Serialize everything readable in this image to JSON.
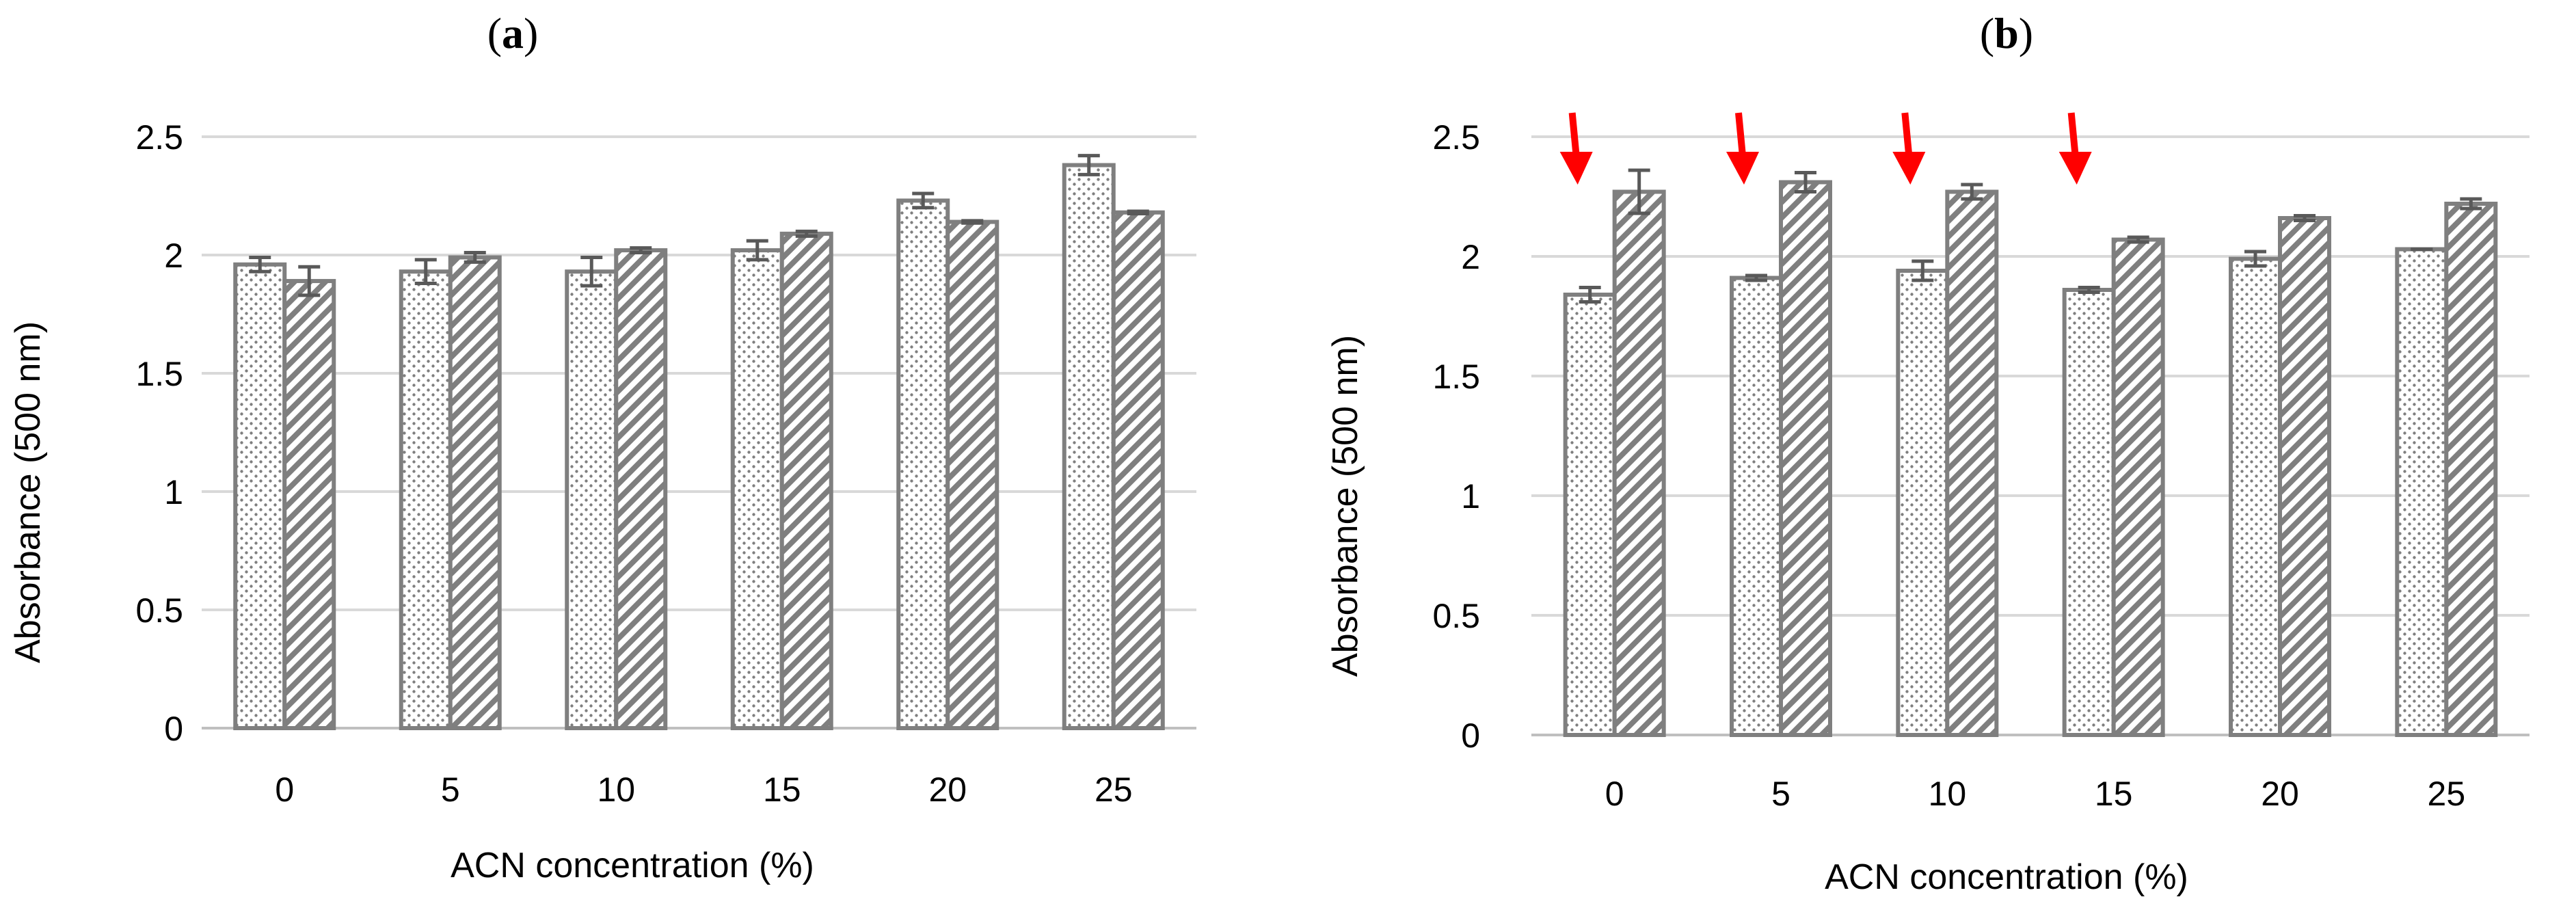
{
  "colors": {
    "bar_stroke": "#7f7f7f",
    "error_bar": "#595959",
    "grid": "#d9d9d9",
    "arrow": "#ff0000"
  },
  "chart_data": [
    {
      "type": "bar",
      "panel": {
        "open": "(",
        "letter": "a",
        "close": ")"
      },
      "xlabel": "ACN concentration (%)",
      "ylabel": "Absorbance (500 nm)",
      "ylim": [
        0,
        2.5
      ],
      "yticks": [
        "0",
        "0.5",
        "1",
        "1.5",
        "2",
        "2.5"
      ],
      "categories": [
        "0",
        "5",
        "10",
        "15",
        "20",
        "25"
      ],
      "series": [
        {
          "name": "series 1 (dotted)",
          "pattern": "dots",
          "values": [
            1.96,
            1.93,
            1.93,
            2.02,
            2.23,
            2.38
          ],
          "errors": [
            0.03,
            0.05,
            0.06,
            0.04,
            0.03,
            0.04
          ]
        },
        {
          "name": "series 2 (hatched)",
          "pattern": "hatch",
          "values": [
            1.89,
            1.99,
            2.02,
            2.09,
            2.14,
            2.18
          ],
          "errors": [
            0.06,
            0.02,
            0.01,
            0.01,
            0.005,
            0.005
          ]
        }
      ],
      "annotations": []
    },
    {
      "type": "bar",
      "panel": {
        "open": "(",
        "letter": "b",
        "close": ")"
      },
      "xlabel": "ACN concentration (%)",
      "ylabel": "Absorbance (500 nm)",
      "ylim": [
        0,
        2.5
      ],
      "yticks": [
        "0",
        "0.5",
        "1",
        "1.5",
        "2",
        "2.5"
      ],
      "categories": [
        "0",
        "5",
        "10",
        "15",
        "20",
        "25"
      ],
      "series": [
        {
          "name": "series 1 (dotted)",
          "pattern": "dots",
          "values": [
            1.84,
            1.91,
            1.94,
            1.86,
            1.99,
            2.03
          ],
          "errors": [
            0.03,
            0.01,
            0.04,
            0.01,
            0.03,
            0.0
          ]
        },
        {
          "name": "series 2 (hatched)",
          "pattern": "hatch",
          "values": [
            2.27,
            2.31,
            2.27,
            2.07,
            2.16,
            2.22
          ],
          "errors": [
            0.09,
            0.04,
            0.03,
            0.01,
            0.01,
            0.02
          ]
        }
      ],
      "annotations": [
        {
          "type": "red-arrow",
          "category": "0"
        },
        {
          "type": "red-arrow",
          "category": "5"
        },
        {
          "type": "red-arrow",
          "category": "10"
        },
        {
          "type": "red-arrow",
          "category": "15"
        }
      ]
    }
  ]
}
